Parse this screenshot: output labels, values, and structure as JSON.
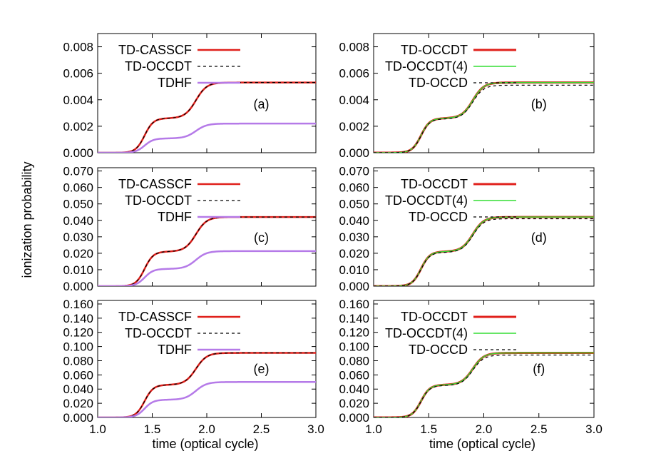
{
  "figure": {
    "ylabel": "ionization probability",
    "xlabel": "time (optical cycle)"
  },
  "chart_data": [
    {
      "type": "line",
      "panel_label": "(a)",
      "ylabel": "",
      "xlabel": "",
      "xlim": [
        1.0,
        3.0
      ],
      "ylim": [
        0.0,
        0.009
      ],
      "yticks": [
        "0.000",
        "0.002",
        "0.004",
        "0.006",
        "0.008"
      ],
      "xticks": [],
      "legend_position": "top-left",
      "series": [
        {
          "name": "TD-CASSCF",
          "color": "#e0201b",
          "dash": "",
          "width": 2.5,
          "plateau1": 0.0026,
          "final": 0.0053
        },
        {
          "name": "TD-OCCDT",
          "color": "#000000",
          "dash": "4,4",
          "width": 1.2,
          "plateau1": 0.0026,
          "final": 0.0053
        },
        {
          "name": "TDHF",
          "color": "#b57ae8",
          "dash": "",
          "width": 2.5,
          "plateau1": 0.00108,
          "final": 0.0022
        }
      ]
    },
    {
      "type": "line",
      "panel_label": "(b)",
      "ylabel": "",
      "xlabel": "",
      "xlim": [
        1.0,
        3.0
      ],
      "ylim": [
        0.0,
        0.009
      ],
      "yticks": [
        "0.000",
        "0.002",
        "0.004",
        "0.006",
        "0.008"
      ],
      "xticks": [],
      "legend_position": "top-left",
      "series": [
        {
          "name": "TD-OCCDT",
          "color": "#e0201b",
          "dash": "",
          "width": 3,
          "plateau1": 0.0026,
          "final": 0.0053
        },
        {
          "name": "TD-OCCDT(4)",
          "color": "#33dd33",
          "dash": "",
          "width": 1.5,
          "plateau1": 0.0026,
          "final": 0.0053
        },
        {
          "name": "TD-OCCD",
          "color": "#000000",
          "dash": "4,4",
          "width": 1.2,
          "plateau1": 0.00255,
          "final": 0.0051
        }
      ]
    },
    {
      "type": "line",
      "panel_label": "(c)",
      "ylabel": "",
      "xlabel": "",
      "xlim": [
        1.0,
        3.0
      ],
      "ylim": [
        0.0,
        0.072
      ],
      "yticks": [
        "0.000",
        "0.010",
        "0.020",
        "0.030",
        "0.040",
        "0.050",
        "0.060",
        "0.070"
      ],
      "xticks": [],
      "legend_position": "top-left",
      "series": [
        {
          "name": "TD-CASSCF",
          "color": "#e0201b",
          "dash": "",
          "width": 2.5,
          "plateau1": 0.021,
          "final": 0.042
        },
        {
          "name": "TD-OCCDT",
          "color": "#000000",
          "dash": "4,4",
          "width": 1.2,
          "plateau1": 0.021,
          "final": 0.042
        },
        {
          "name": "TDHF",
          "color": "#b57ae8",
          "dash": "",
          "width": 2.5,
          "plateau1": 0.0105,
          "final": 0.0213
        }
      ]
    },
    {
      "type": "line",
      "panel_label": "(d)",
      "ylabel": "",
      "xlabel": "",
      "xlim": [
        1.0,
        3.0
      ],
      "ylim": [
        0.0,
        0.072
      ],
      "yticks": [
        "0.000",
        "0.010",
        "0.020",
        "0.030",
        "0.040",
        "0.050",
        "0.060",
        "0.070"
      ],
      "xticks": [],
      "legend_position": "top-left",
      "series": [
        {
          "name": "TD-OCCDT",
          "color": "#e0201b",
          "dash": "",
          "width": 3,
          "plateau1": 0.021,
          "final": 0.042
        },
        {
          "name": "TD-OCCDT(4)",
          "color": "#33dd33",
          "dash": "",
          "width": 1.5,
          "plateau1": 0.021,
          "final": 0.042
        },
        {
          "name": "TD-OCCD",
          "color": "#000000",
          "dash": "4,4",
          "width": 1.2,
          "plateau1": 0.0205,
          "final": 0.041
        }
      ]
    },
    {
      "type": "line",
      "panel_label": "(e)",
      "ylabel": "",
      "xlabel": "time (optical cycle)",
      "xlim": [
        1.0,
        3.0
      ],
      "ylim": [
        0.0,
        0.165
      ],
      "yticks": [
        "0.000",
        "0.020",
        "0.040",
        "0.060",
        "0.080",
        "0.100",
        "0.120",
        "0.140",
        "0.160"
      ],
      "xticks": [
        "1.0",
        "1.5",
        "2.0",
        "2.5",
        "3.0"
      ],
      "legend_position": "top-left",
      "series": [
        {
          "name": "TD-CASSCF",
          "color": "#e0201b",
          "dash": "",
          "width": 2.5,
          "plateau1": 0.046,
          "final": 0.091
        },
        {
          "name": "TD-OCCDT",
          "color": "#000000",
          "dash": "4,4",
          "width": 1.2,
          "plateau1": 0.046,
          "final": 0.091
        },
        {
          "name": "TDHF",
          "color": "#b57ae8",
          "dash": "",
          "width": 2.5,
          "plateau1": 0.025,
          "final": 0.05
        }
      ]
    },
    {
      "type": "line",
      "panel_label": "(f)",
      "ylabel": "",
      "xlabel": "time (optical cycle)",
      "xlim": [
        1.0,
        3.0
      ],
      "ylim": [
        0.0,
        0.165
      ],
      "yticks": [
        "0.000",
        "0.020",
        "0.040",
        "0.060",
        "0.080",
        "0.100",
        "0.120",
        "0.140",
        "0.160"
      ],
      "xticks": [
        "1.0",
        "1.5",
        "2.0",
        "2.5",
        "3.0"
      ],
      "legend_position": "top-left",
      "series": [
        {
          "name": "TD-OCCDT",
          "color": "#e0201b",
          "dash": "",
          "width": 3,
          "plateau1": 0.046,
          "final": 0.091
        },
        {
          "name": "TD-OCCDT(4)",
          "color": "#33dd33",
          "dash": "",
          "width": 1.5,
          "plateau1": 0.046,
          "final": 0.091
        },
        {
          "name": "TD-OCCD",
          "color": "#000000",
          "dash": "4,4",
          "width": 1.2,
          "plateau1": 0.045,
          "final": 0.088
        }
      ]
    }
  ]
}
